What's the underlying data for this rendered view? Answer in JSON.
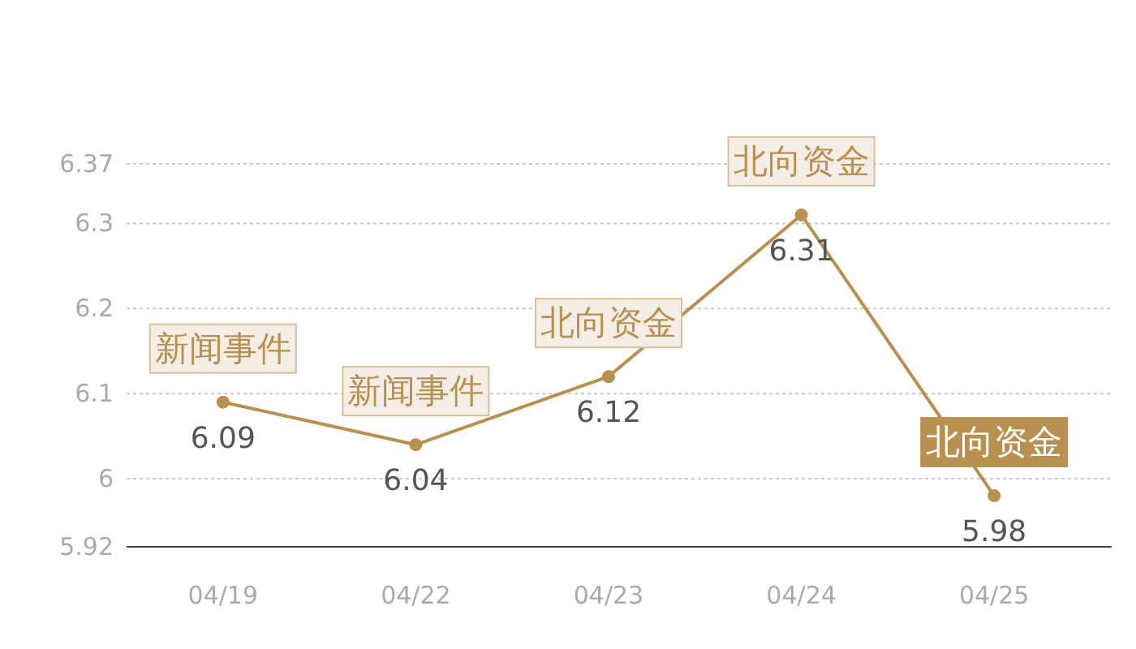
{
  "chart_data": {
    "type": "line",
    "categories": [
      "04/19",
      "04/22",
      "04/23",
      "04/24",
      "04/25"
    ],
    "series": [
      {
        "color": "#b8904f",
        "values": [
          6.09,
          6.04,
          6.12,
          6.31,
          5.98
        ]
      }
    ],
    "ylim": [
      5.92,
      6.37
    ],
    "yticks": [
      5.92,
      6,
      6.1,
      6.2,
      6.3,
      6.37
    ],
    "grid": "y",
    "marker": "circle",
    "line_style": "solid",
    "data_labels": true,
    "annotations": [
      {
        "text": "新闻事件",
        "x": "04/19",
        "y": 6.09
      },
      {
        "text": "新闻事件",
        "x": "04/22",
        "y": 6.04
      },
      {
        "text": "北向资金",
        "x": "04/23",
        "y": 6.12
      },
      {
        "text": "北向资金",
        "x": "04/24",
        "y": 6.31
      },
      {
        "text": "北向资金",
        "x": "04/25",
        "y": 5.98
      }
    ]
  }
}
